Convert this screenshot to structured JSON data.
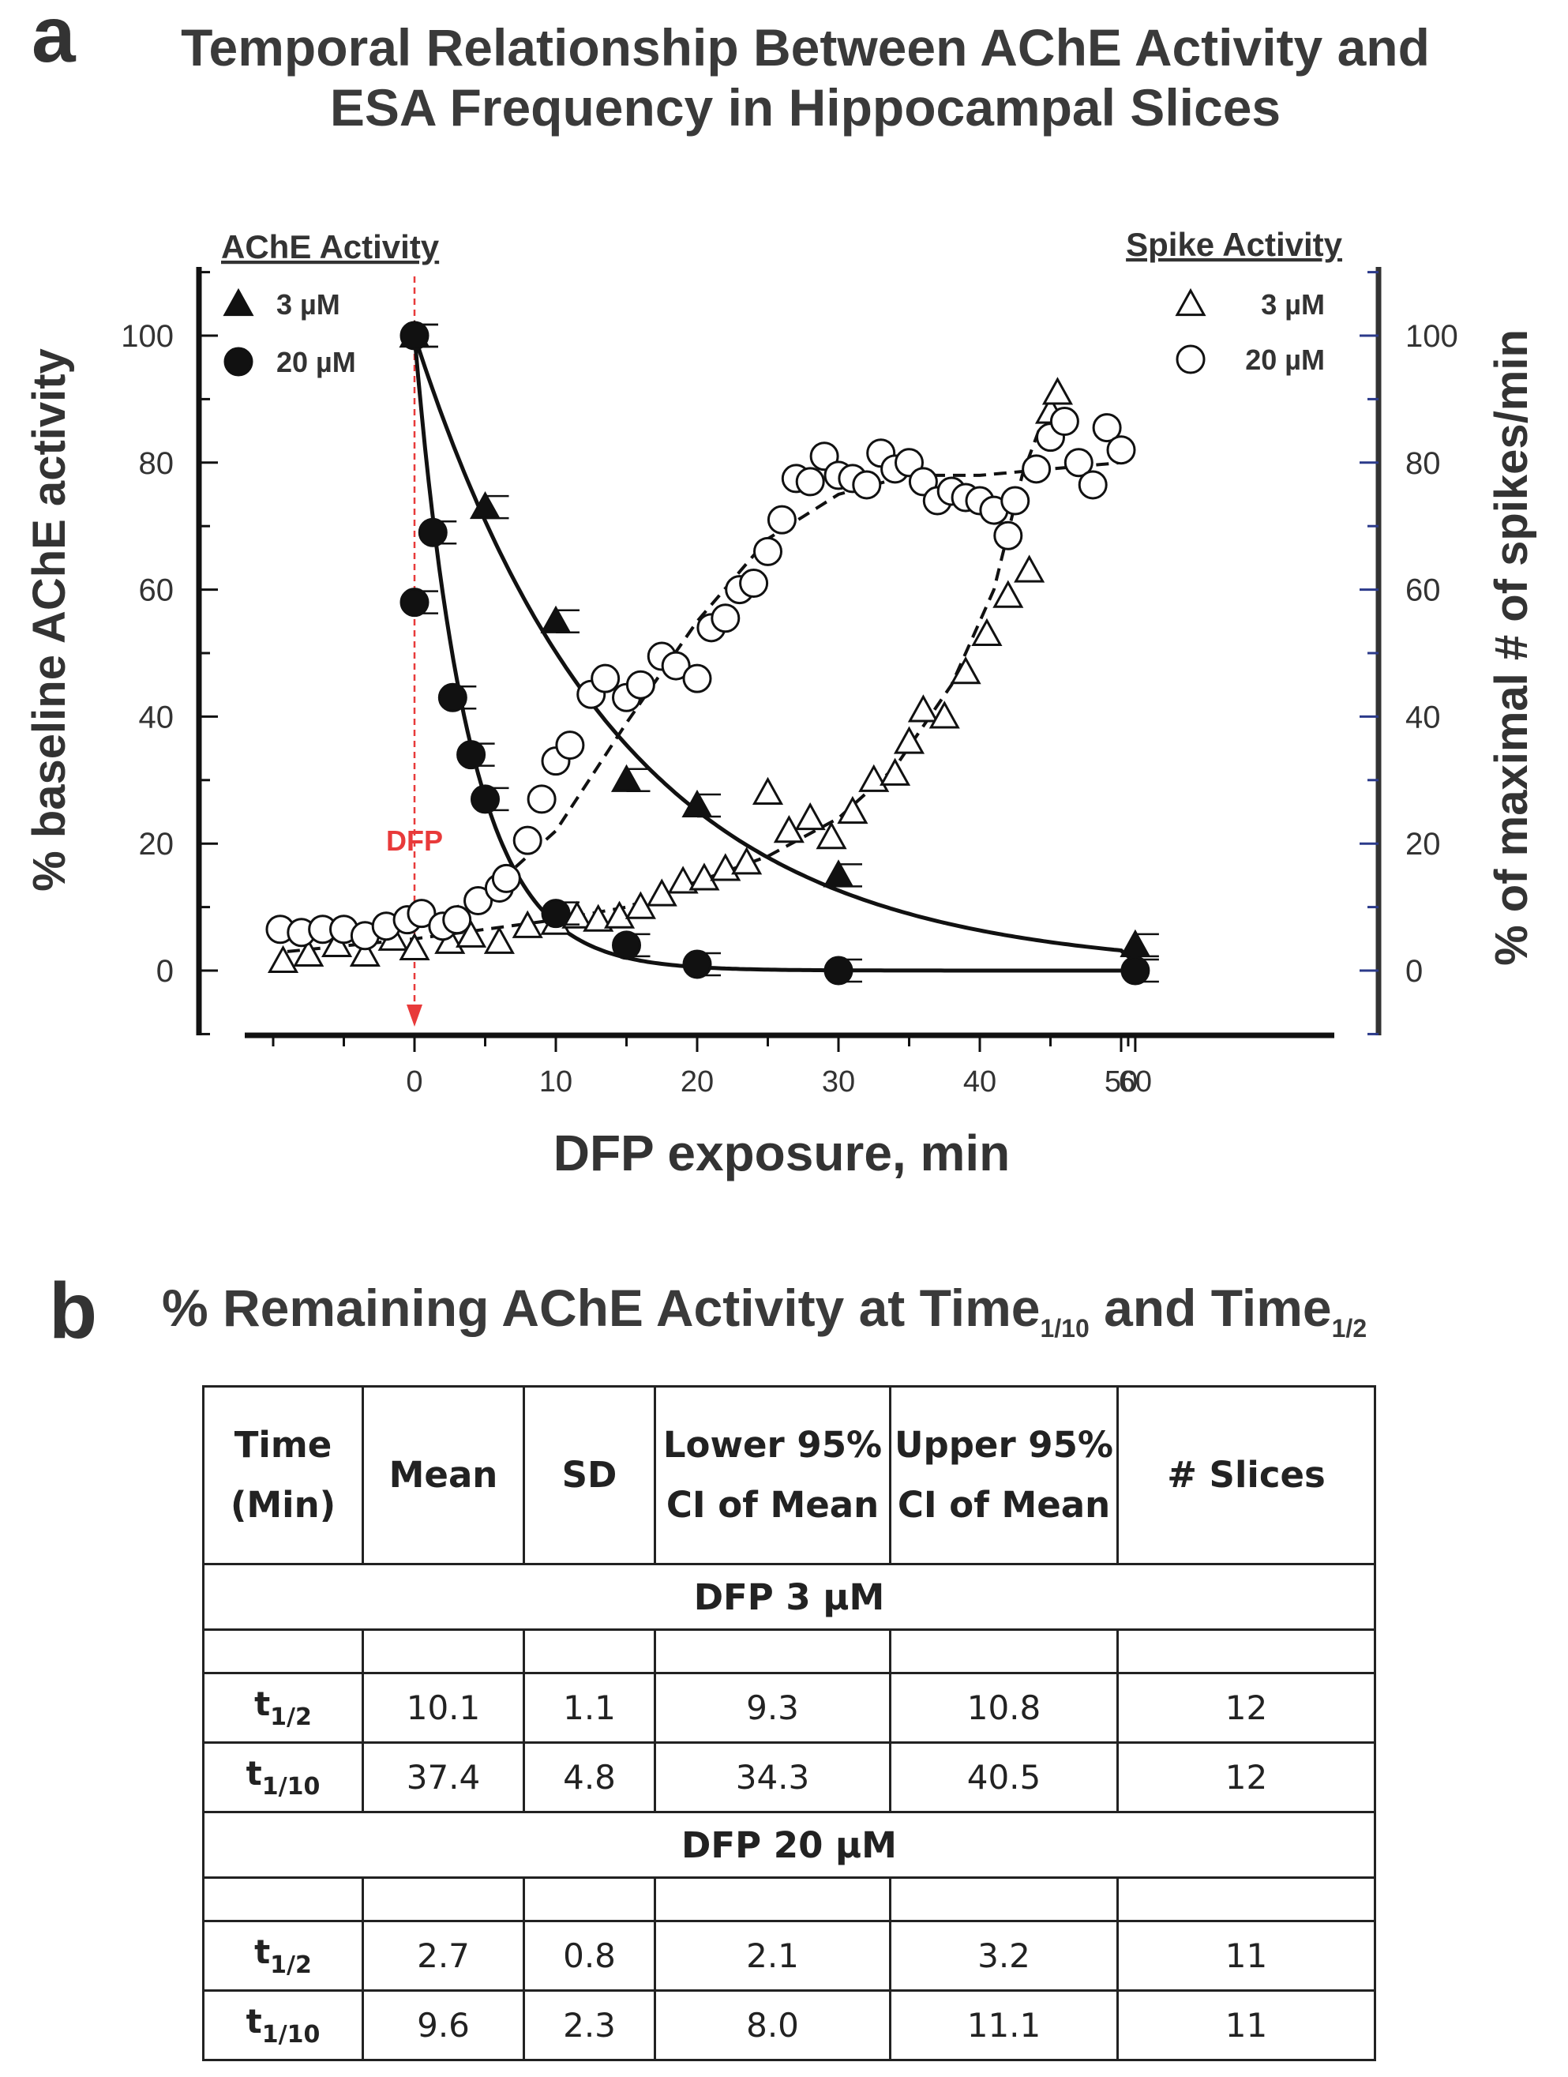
{
  "panel_a": {
    "letter": "a",
    "title_line1": "Temporal Relationship Between AChE Activity and",
    "title_line2": "ESA Frequency in Hippocampal Slices"
  },
  "panel_b": {
    "letter": "b",
    "title_main": "% Remaining AChE Activity at Time",
    "title_sub1": "1/10",
    "title_and": " and Time",
    "title_sub2": "1/2"
  },
  "colors": {
    "axis": "#111111",
    "right_axis": "#333333",
    "right_ticks": "#2b3a8a",
    "dfp_marker": "#e83a3a",
    "text": "#333333"
  },
  "chart_data": {
    "type": "scatter",
    "xlabel": "DFP exposure, min",
    "ylabel_left": "% baseline AChE activity",
    "ylabel_right": "% of maximal # of spikes/min",
    "xlim": [
      -14,
      65
    ],
    "ylim": [
      -10,
      110
    ],
    "x_ticks": [
      0,
      10,
      20,
      30,
      40,
      50,
      60
    ],
    "y_ticks": [
      0,
      20,
      40,
      60,
      80,
      100
    ],
    "ache_legend_title": "AChE Activity",
    "spike_legend_title": "Spike Activity",
    "dfp_marker": {
      "x": 0,
      "label": "DFP"
    },
    "series": [
      {
        "name": "AChE 3 µM",
        "legend": "3 µM",
        "marker": "filled-triangle",
        "fit": "solid",
        "points": [
          [
            0,
            100
          ],
          [
            5,
            73
          ],
          [
            10,
            55
          ],
          [
            15,
            30
          ],
          [
            20,
            26
          ],
          [
            30,
            15
          ],
          [
            60,
            4
          ]
        ],
        "fit_curve": {
          "model": "exp",
          "a": 100,
          "k": 0.069,
          "c": 0
        }
      },
      {
        "name": "AChE 20 µM",
        "legend": "20 µM",
        "marker": "filled-circle",
        "fit": "solid",
        "points": [
          [
            0,
            100
          ],
          [
            0,
            58
          ],
          [
            1.3,
            69
          ],
          [
            2.7,
            43
          ],
          [
            4,
            34
          ],
          [
            5,
            27
          ],
          [
            10,
            9
          ],
          [
            15,
            4
          ],
          [
            20,
            1
          ],
          [
            30,
            0
          ],
          [
            60,
            0
          ]
        ],
        "fit_curve": {
          "model": "exp",
          "a": 100,
          "k": 0.26,
          "c": 0
        }
      },
      {
        "name": "Spike 3 µM",
        "legend": "3 µM",
        "marker": "open-triangle",
        "fit": "dashed",
        "points": [
          [
            -9.3,
            1.5
          ],
          [
            -7.5,
            2.5
          ],
          [
            -5.5,
            4
          ],
          [
            -3.5,
            2.5
          ],
          [
            -1.5,
            5
          ],
          [
            0,
            3.5
          ],
          [
            2.5,
            4.5
          ],
          [
            4,
            5.5
          ],
          [
            6,
            4.5
          ],
          [
            8,
            7
          ],
          [
            10,
            7.5
          ],
          [
            11.5,
            8.5
          ],
          [
            13,
            8
          ],
          [
            14.5,
            8.5
          ],
          [
            16,
            10
          ],
          [
            17.5,
            12
          ],
          [
            19,
            14
          ],
          [
            20.5,
            14.5
          ],
          [
            22,
            16
          ],
          [
            23.5,
            17
          ],
          [
            25,
            28
          ],
          [
            26.5,
            22
          ],
          [
            28,
            24
          ],
          [
            29.5,
            21
          ],
          [
            31,
            25
          ],
          [
            32.5,
            30
          ],
          [
            34,
            31
          ],
          [
            35,
            36
          ],
          [
            36,
            41
          ],
          [
            37.5,
            40
          ],
          [
            39,
            47
          ],
          [
            40.5,
            53
          ],
          [
            42,
            59
          ],
          [
            43.5,
            63
          ],
          [
            45,
            88
          ],
          [
            45.5,
            91
          ]
        ],
        "fit_curve_points": [
          [
            -9,
            3
          ],
          [
            0,
            5
          ],
          [
            10,
            8
          ],
          [
            15,
            10
          ],
          [
            20,
            14
          ],
          [
            25,
            18
          ],
          [
            30,
            24
          ],
          [
            34,
            32
          ],
          [
            38,
            45
          ],
          [
            41,
            60
          ],
          [
            43,
            78
          ],
          [
            45,
            90
          ]
        ]
      },
      {
        "name": "Spike 20 µM",
        "legend": "20 µM",
        "marker": "open-circle",
        "fit": "dashed",
        "points": [
          [
            -9.5,
            6.5
          ],
          [
            -8,
            6
          ],
          [
            -6.5,
            6.5
          ],
          [
            -5,
            6.5
          ],
          [
            -3.5,
            5.5
          ],
          [
            -2,
            7
          ],
          [
            -0.5,
            8
          ],
          [
            0.5,
            9
          ],
          [
            2,
            7
          ],
          [
            3,
            8
          ],
          [
            4.5,
            11
          ],
          [
            6,
            13
          ],
          [
            6.5,
            14.5
          ],
          [
            8,
            20.5
          ],
          [
            9,
            27
          ],
          [
            10,
            33
          ],
          [
            11,
            35.5
          ],
          [
            12.5,
            43.5
          ],
          [
            13.5,
            46
          ],
          [
            15,
            43
          ],
          [
            16,
            45
          ],
          [
            17.5,
            49.5
          ],
          [
            18.5,
            48
          ],
          [
            20,
            46
          ],
          [
            21,
            54
          ],
          [
            22,
            55.5
          ],
          [
            23,
            60
          ],
          [
            24,
            61
          ],
          [
            25,
            66
          ],
          [
            26,
            71
          ],
          [
            27,
            77.5
          ],
          [
            28,
            77
          ],
          [
            29,
            81
          ],
          [
            30,
            78
          ],
          [
            31,
            77.5
          ],
          [
            32,
            76.5
          ],
          [
            33,
            81.5
          ],
          [
            34,
            79
          ],
          [
            35,
            80
          ],
          [
            36,
            77
          ],
          [
            37,
            74
          ],
          [
            38,
            75.5
          ],
          [
            39,
            74.5
          ],
          [
            40,
            74
          ],
          [
            41,
            72.5
          ],
          [
            42,
            68.5
          ],
          [
            42.5,
            74
          ],
          [
            44,
            79
          ],
          [
            45,
            84
          ],
          [
            46,
            86.5
          ],
          [
            47,
            80
          ],
          [
            48,
            76.5
          ],
          [
            49,
            85.5
          ],
          [
            50,
            82
          ]
        ],
        "fit_curve_points": [
          [
            -9,
            5
          ],
          [
            -5,
            5.5
          ],
          [
            0,
            7
          ],
          [
            5,
            12
          ],
          [
            10,
            22
          ],
          [
            15,
            39
          ],
          [
            20,
            55
          ],
          [
            25,
            68
          ],
          [
            30,
            75
          ],
          [
            35,
            78
          ],
          [
            40,
            78
          ],
          [
            45,
            79
          ],
          [
            50,
            80
          ]
        ]
      }
    ]
  },
  "table": {
    "headers": {
      "time_l1": "Time",
      "time_l2": "(Min)",
      "mean": "Mean",
      "sd": "SD",
      "lower_l1": "Lower 95%",
      "lower_l2": "CI of Mean",
      "upper_l1": "Upper 95%",
      "upper_l2": "CI of Mean",
      "slices": "# Slices"
    },
    "sections": [
      {
        "label": "DFP 3 µM",
        "rows": [
          {
            "t": "t",
            "sub": "1/2",
            "mean": "10.1",
            "sd": "1.1",
            "lower": "9.3",
            "upper": "10.8",
            "slices": "12"
          },
          {
            "t": "t",
            "sub": "1/10",
            "mean": "37.4",
            "sd": "4.8",
            "lower": "34.3",
            "upper": "40.5",
            "slices": "12"
          }
        ]
      },
      {
        "label": "DFP 20 µM",
        "rows": [
          {
            "t": "t",
            "sub": "1/2",
            "mean": "2.7",
            "sd": "0.8",
            "lower": "2.1",
            "upper": "3.2",
            "slices": "11"
          },
          {
            "t": "t",
            "sub": "1/10",
            "mean": "9.6",
            "sd": "2.3",
            "lower": "8.0",
            "upper": "11.1",
            "slices": "11"
          }
        ]
      }
    ]
  }
}
